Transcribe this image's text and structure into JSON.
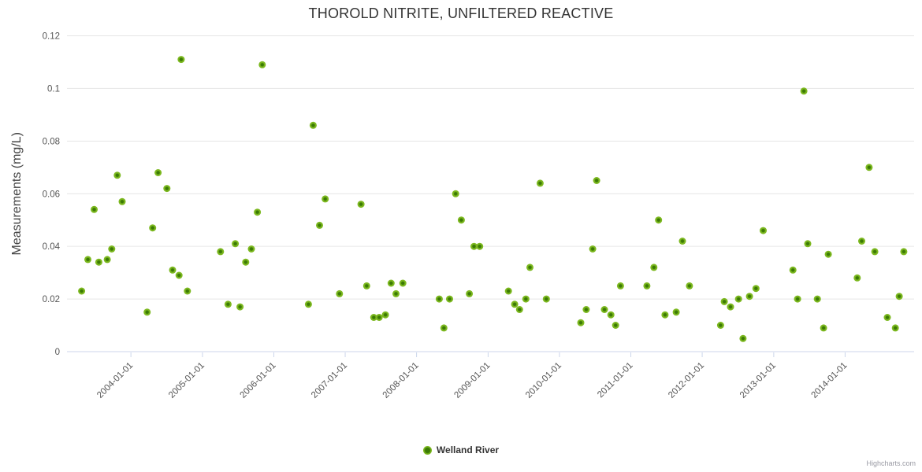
{
  "chart_data": {
    "type": "scatter",
    "title": "THOROLD NITRITE, UNFILTERED REACTIVE",
    "xlabel": "",
    "ylabel": "Measurements (mg/L)",
    "x_type": "datetime",
    "xlim": [
      "2003-02-08",
      "2014-12-20"
    ],
    "ylim": [
      0,
      0.12
    ],
    "y_ticks": [
      0,
      0.02,
      0.04,
      0.06,
      0.08,
      0.1,
      0.12
    ],
    "x_ticks": [
      "2004-01-01",
      "2005-01-01",
      "2006-01-01",
      "2007-01-01",
      "2008-01-01",
      "2009-01-01",
      "2010-01-01",
      "2011-01-01",
      "2012-01-01",
      "2013-01-01",
      "2014-01-01"
    ],
    "grid": true,
    "legend_position": "bottom-center",
    "series": [
      {
        "name": "Welland River",
        "marker_outer_color": "#7cb81f",
        "marker_inner_color": "#3b7a04",
        "points": [
          [
            "2003-04-24",
            0.023
          ],
          [
            "2003-05-26",
            0.035
          ],
          [
            "2003-06-27",
            0.054
          ],
          [
            "2003-07-21",
            0.034
          ],
          [
            "2003-09-02",
            0.035
          ],
          [
            "2003-09-25",
            0.039
          ],
          [
            "2003-10-23",
            0.067
          ],
          [
            "2003-11-17",
            0.057
          ],
          [
            "2004-03-24",
            0.015
          ],
          [
            "2004-04-21",
            0.047
          ],
          [
            "2004-05-19",
            0.068
          ],
          [
            "2004-07-03",
            0.062
          ],
          [
            "2004-08-01",
            0.031
          ],
          [
            "2004-09-03",
            0.029
          ],
          [
            "2004-09-14",
            0.111
          ],
          [
            "2004-10-16",
            0.023
          ],
          [
            "2005-04-03",
            0.038
          ],
          [
            "2005-05-12",
            0.018
          ],
          [
            "2005-06-18",
            0.041
          ],
          [
            "2005-07-12",
            0.017
          ],
          [
            "2005-08-10",
            0.034
          ],
          [
            "2005-09-08",
            0.039
          ],
          [
            "2005-10-09",
            0.053
          ],
          [
            "2005-11-03",
            0.109
          ],
          [
            "2006-06-27",
            0.018
          ],
          [
            "2006-07-21",
            0.086
          ],
          [
            "2006-08-23",
            0.048
          ],
          [
            "2006-09-21",
            0.058
          ],
          [
            "2006-12-03",
            0.022
          ],
          [
            "2007-03-23",
            0.056
          ],
          [
            "2007-04-21",
            0.025
          ],
          [
            "2007-05-27",
            0.013
          ],
          [
            "2007-06-24",
            0.013
          ],
          [
            "2007-07-26",
            0.014
          ],
          [
            "2007-08-24",
            0.026
          ],
          [
            "2007-09-18",
            0.022
          ],
          [
            "2007-10-23",
            0.026
          ],
          [
            "2008-04-26",
            0.02
          ],
          [
            "2008-05-20",
            0.009
          ],
          [
            "2008-06-18",
            0.02
          ],
          [
            "2008-07-19",
            0.06
          ],
          [
            "2008-08-17",
            0.05
          ],
          [
            "2008-09-27",
            0.022
          ],
          [
            "2008-10-21",
            0.04
          ],
          [
            "2008-11-19",
            0.04
          ],
          [
            "2009-04-15",
            0.023
          ],
          [
            "2009-05-17",
            0.018
          ],
          [
            "2009-06-11",
            0.016
          ],
          [
            "2009-07-13",
            0.02
          ],
          [
            "2009-08-03",
            0.032
          ],
          [
            "2009-09-24",
            0.064
          ],
          [
            "2009-10-26",
            0.02
          ],
          [
            "2010-04-20",
            0.011
          ],
          [
            "2010-05-18",
            0.016
          ],
          [
            "2010-06-20",
            0.039
          ],
          [
            "2010-07-10",
            0.065
          ],
          [
            "2010-08-19",
            0.016
          ],
          [
            "2010-09-21",
            0.014
          ],
          [
            "2010-10-15",
            0.01
          ],
          [
            "2010-11-09",
            0.025
          ],
          [
            "2011-03-24",
            0.025
          ],
          [
            "2011-04-29",
            0.032
          ],
          [
            "2011-05-23",
            0.05
          ],
          [
            "2011-06-25",
            0.014
          ],
          [
            "2011-08-21",
            0.015
          ],
          [
            "2011-09-22",
            0.042
          ],
          [
            "2011-10-28",
            0.025
          ],
          [
            "2012-04-04",
            0.01
          ],
          [
            "2012-04-23",
            0.019
          ],
          [
            "2012-05-25",
            0.017
          ],
          [
            "2012-07-05",
            0.02
          ],
          [
            "2012-07-28",
            0.005
          ],
          [
            "2012-08-30",
            0.021
          ],
          [
            "2012-10-02",
            0.024
          ],
          [
            "2012-11-08",
            0.046
          ],
          [
            "2013-04-09",
            0.031
          ],
          [
            "2013-05-03",
            0.02
          ],
          [
            "2013-06-04",
            0.099
          ],
          [
            "2013-06-24",
            0.041
          ],
          [
            "2013-08-12",
            0.02
          ],
          [
            "2013-09-13",
            0.009
          ],
          [
            "2013-10-07",
            0.037
          ],
          [
            "2014-03-04",
            0.028
          ],
          [
            "2014-03-27",
            0.042
          ],
          [
            "2014-05-04",
            0.07
          ],
          [
            "2014-06-02",
            0.038
          ],
          [
            "2014-08-05",
            0.013
          ],
          [
            "2014-09-15",
            0.009
          ],
          [
            "2014-10-05",
            0.021
          ],
          [
            "2014-10-28",
            0.038
          ]
        ]
      }
    ]
  },
  "legend": {
    "label": "Welland River"
  },
  "credits": {
    "text": "Highcharts.com"
  },
  "colors": {
    "accent_green_outer": "#7cb81f",
    "accent_green_inner": "#3b7a04",
    "grid_line": "#e6e6e6",
    "axis_line": "#ccd6eb",
    "tick_label": "#555555",
    "title_text": "#333333",
    "axis_title_text": "#444444",
    "credits_text": "#999aa3"
  }
}
